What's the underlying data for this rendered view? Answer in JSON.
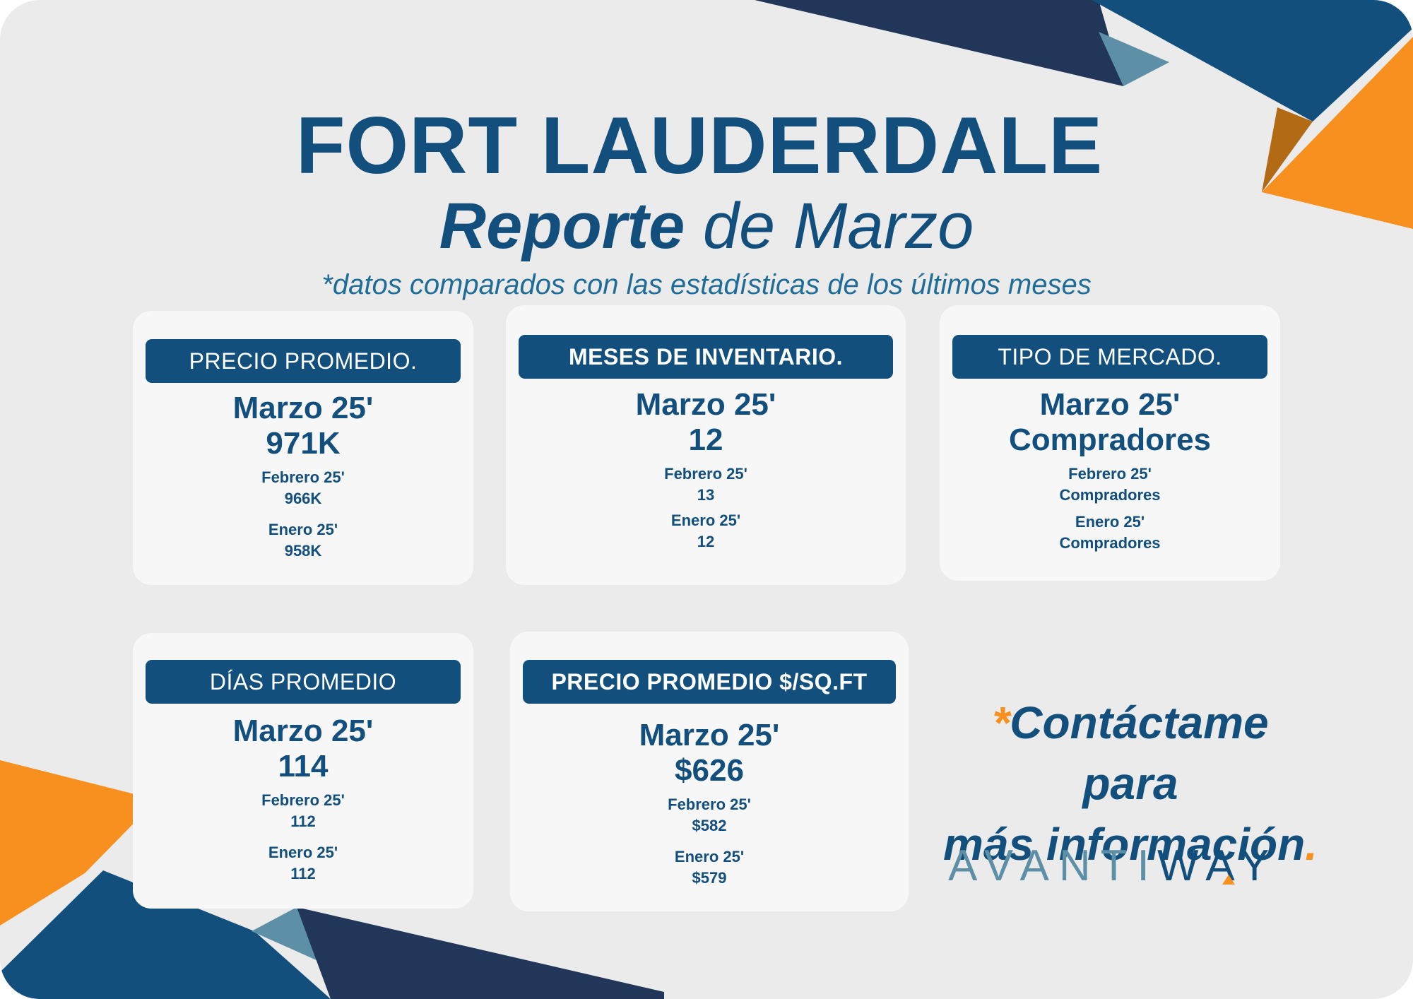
{
  "header": {
    "title": "FORT LAUDERDALE",
    "subtitle_bold": "Reporte",
    "subtitle_rest": " de Marzo",
    "note": "*datos comparados con las estadísticas de los últimos meses"
  },
  "cards": {
    "precio": {
      "label": "PRECIO PROMEDIO.",
      "current_month": "Marzo 25'",
      "current_value": "971K",
      "prev1_month": "Febrero 25'",
      "prev1_value": "966K",
      "prev2_month": "Enero 25'",
      "prev2_value": "958K"
    },
    "inventario": {
      "label": "MESES DE INVENTARIO.",
      "current_month": "Marzo 25'",
      "current_value": "12",
      "prev1_month": "Febrero 25'",
      "prev1_value": "13",
      "prev2_month": "Enero 25'",
      "prev2_value": "12"
    },
    "mercado": {
      "label": "TIPO DE MERCADO.",
      "current_month": "Marzo 25'",
      "current_value": "Compradores",
      "prev1_month": "Febrero 25'",
      "prev1_value": "Compradores",
      "prev2_month": "Enero 25'",
      "prev2_value": "Compradores"
    },
    "dias": {
      "label": "DÍAS PROMEDIO",
      "current_month": "Marzo 25'",
      "current_value": "114",
      "prev1_month": "Febrero 25'",
      "prev1_value": "112",
      "prev2_month": "Enero 25'",
      "prev2_value": "112"
    },
    "sqft": {
      "label": "PRECIO PROMEDIO  $/SQ.FT",
      "current_month": "Marzo 25'",
      "current_value": "$626",
      "prev1_month": "Febrero 25'",
      "prev1_value": "$582",
      "prev2_month": "Enero 25'",
      "prev2_value": "$579"
    }
  },
  "contact": {
    "asterisk": "*",
    "line1": "Contáctame para",
    "line2": "más información",
    "period": "."
  },
  "logo": {
    "part1": "AVANTI",
    "part2": "WAY"
  },
  "colors": {
    "navy": "#124f7c",
    "dark_navy": "#213658",
    "orange": "#f7901e",
    "background": "#ebebeb",
    "card": "#f7f7f7"
  }
}
